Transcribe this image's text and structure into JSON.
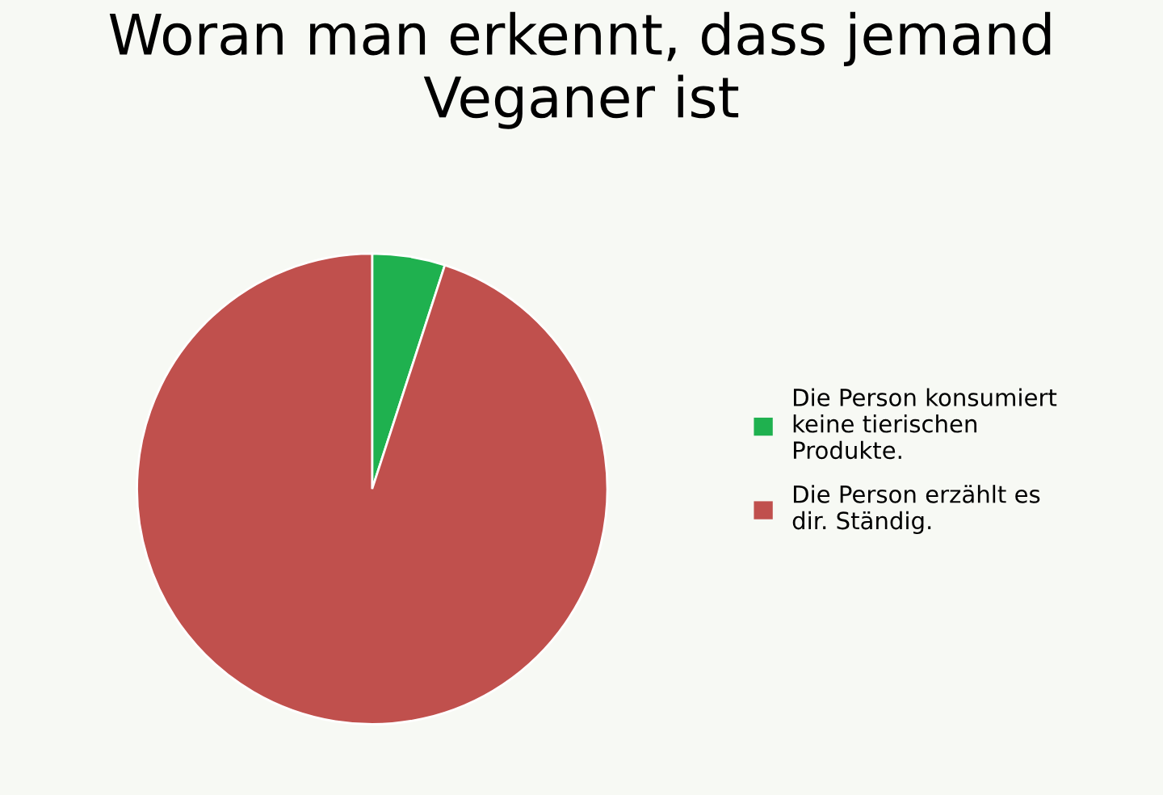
{
  "chart_data": {
    "type": "pie",
    "title": "Woran man erkennt, dass jemand Veganer ist",
    "categories": [
      "Die Person konsumiert keine tierischen Produkte.",
      "Die Person erzählt es dir. Ständig."
    ],
    "values": [
      5,
      95
    ],
    "colors": [
      "#1fb14f",
      "#c0504d"
    ],
    "legend": "right"
  }
}
